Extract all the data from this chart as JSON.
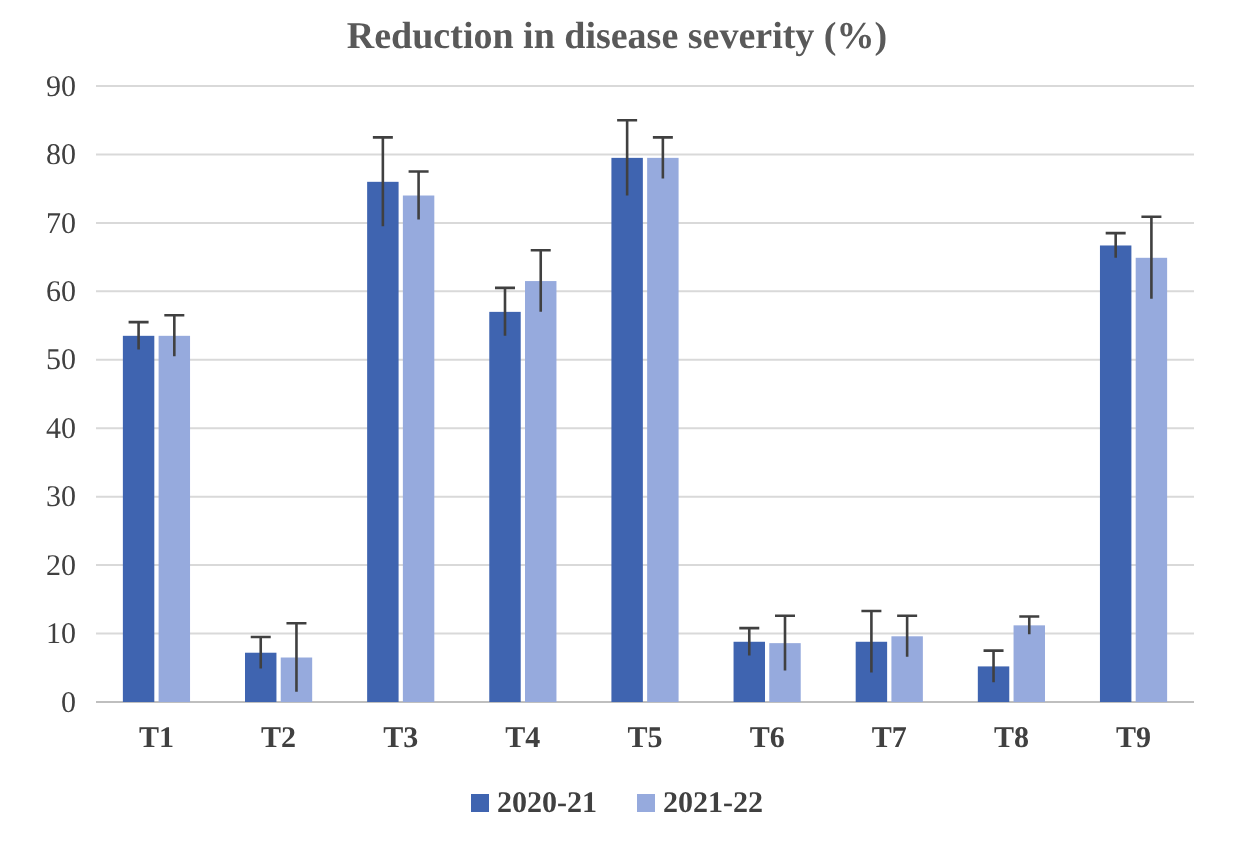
{
  "chart_data": {
    "type": "bar",
    "title": "Reduction in disease severity (%)",
    "categories": [
      "T1",
      "T2",
      "T3",
      "T4",
      "T5",
      "T6",
      "T7",
      "T8",
      "T9"
    ],
    "series": [
      {
        "name": "2020-21",
        "color": "#3f64b0",
        "values": [
          53.5,
          7.2,
          76,
          57,
          79.5,
          8.8,
          8.8,
          5.2,
          66.7
        ],
        "errors": [
          2,
          2.3,
          6.5,
          3.5,
          5.5,
          2,
          4.5,
          2.3,
          1.8
        ]
      },
      {
        "name": "2021-22",
        "color": "#96aadd",
        "values": [
          53.5,
          6.5,
          74,
          61.5,
          79.5,
          8.6,
          9.6,
          11.2,
          64.9
        ],
        "errors": [
          3,
          5,
          3.5,
          4.5,
          3,
          4,
          3,
          1.3,
          6
        ]
      }
    ],
    "ylim": [
      0,
      90
    ],
    "yticks": [
      0,
      10,
      20,
      30,
      40,
      50,
      60,
      70,
      80,
      90
    ],
    "grid": "y",
    "legend": "bottom"
  }
}
